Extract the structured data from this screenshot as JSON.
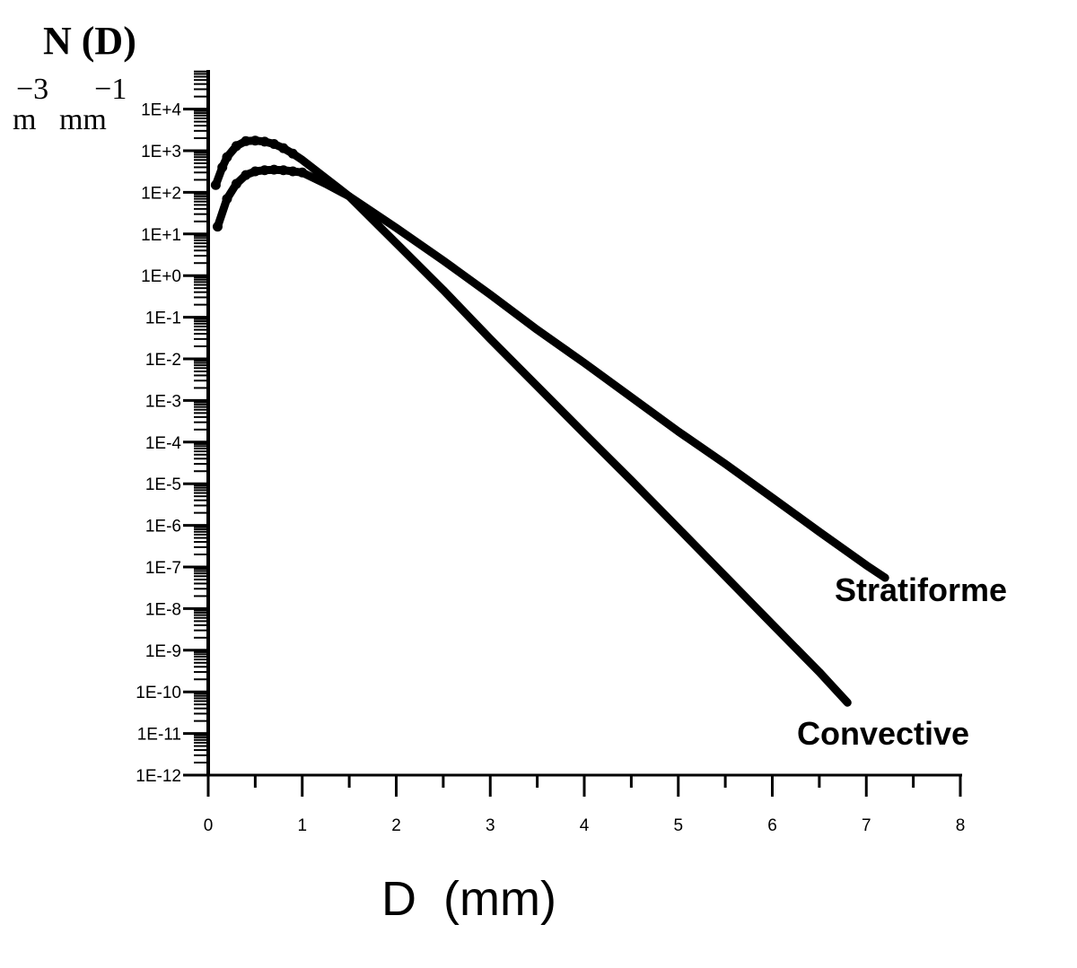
{
  "chart_data": {
    "type": "line",
    "ylabel": "N (D)",
    "ylabel_unit_top": "−3      −1",
    "ylabel_unit_bottom": "m   mm",
    "xlabel": "D  (mm)",
    "xlim": [
      0,
      8
    ],
    "ylim": [
      1e-12,
      100000.0
    ],
    "yscale": "log",
    "grid": false,
    "x_ticks": [
      "0",
      "1",
      "2",
      "3",
      "4",
      "5",
      "6",
      "7",
      "8"
    ],
    "y_ticks": [
      "1E-12",
      "1E-11",
      "1E-10",
      "1E-9",
      "1E-8",
      "1E-7",
      "1E-6",
      "1E-5",
      "1E-4",
      "1E-3",
      "1E-2",
      "1E-1",
      "1E+0",
      "1E+1",
      "1E+2",
      "1E+3",
      "1E+4"
    ],
    "series": [
      {
        "name": "Stratiforme",
        "color": "#000000",
        "x": [
          0.1,
          0.2,
          0.3,
          0.4,
          0.5,
          0.6,
          0.7,
          0.8,
          0.9,
          1.0,
          1.25,
          1.5,
          2.0,
          2.5,
          3.0,
          3.5,
          4.0,
          4.5,
          5.0,
          5.5,
          6.0,
          6.5,
          7.0,
          7.2
        ],
        "y": [
          15,
          70,
          160,
          260,
          320,
          340,
          350,
          340,
          320,
          300,
          160,
          80,
          14,
          2.3,
          0.35,
          0.05,
          0.008,
          0.0012,
          0.00018,
          3e-05,
          4.6e-06,
          7e-07,
          1.1e-07,
          5.5e-08
        ]
      },
      {
        "name": "Convective",
        "color": "#000000",
        "x": [
          0.08,
          0.15,
          0.2,
          0.3,
          0.4,
          0.5,
          0.6,
          0.7,
          0.8,
          0.9,
          1.0,
          1.25,
          1.5,
          2.0,
          2.5,
          3.0,
          3.5,
          4.0,
          4.5,
          5.0,
          5.5,
          6.0,
          6.5,
          6.8
        ],
        "y": [
          150,
          400,
          700,
          1300,
          1700,
          1750,
          1650,
          1450,
          1150,
          850,
          600,
          220,
          80,
          6,
          0.45,
          0.03,
          0.0022,
          0.00016,
          1.2e-05,
          8.5e-07,
          6e-08,
          4.2e-09,
          3e-10,
          5.5e-11
        ]
      }
    ]
  }
}
